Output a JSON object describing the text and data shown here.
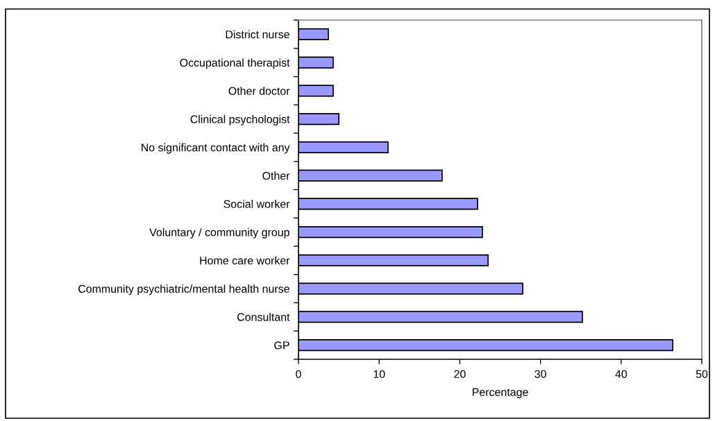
{
  "chart_data": {
    "type": "bar",
    "orientation": "horizontal",
    "categories": [
      "District nurse",
      "Occupational therapist",
      "Other doctor",
      "Clinical psychologist",
      "No significant contact with any",
      "Other",
      "Social worker",
      "Voluntary / community group",
      "Home care worker",
      "Community psychiatric/mental health nurse",
      "Consultant",
      "GP"
    ],
    "values": [
      3.7,
      4.3,
      4.3,
      5.0,
      11.1,
      17.8,
      22.2,
      22.8,
      23.5,
      27.8,
      35.2,
      46.4
    ],
    "color": "#9999ff",
    "xlabel": "Percentage",
    "xlim": [
      0,
      50
    ],
    "xticks": [
      0,
      10,
      20,
      30,
      40,
      50
    ]
  }
}
